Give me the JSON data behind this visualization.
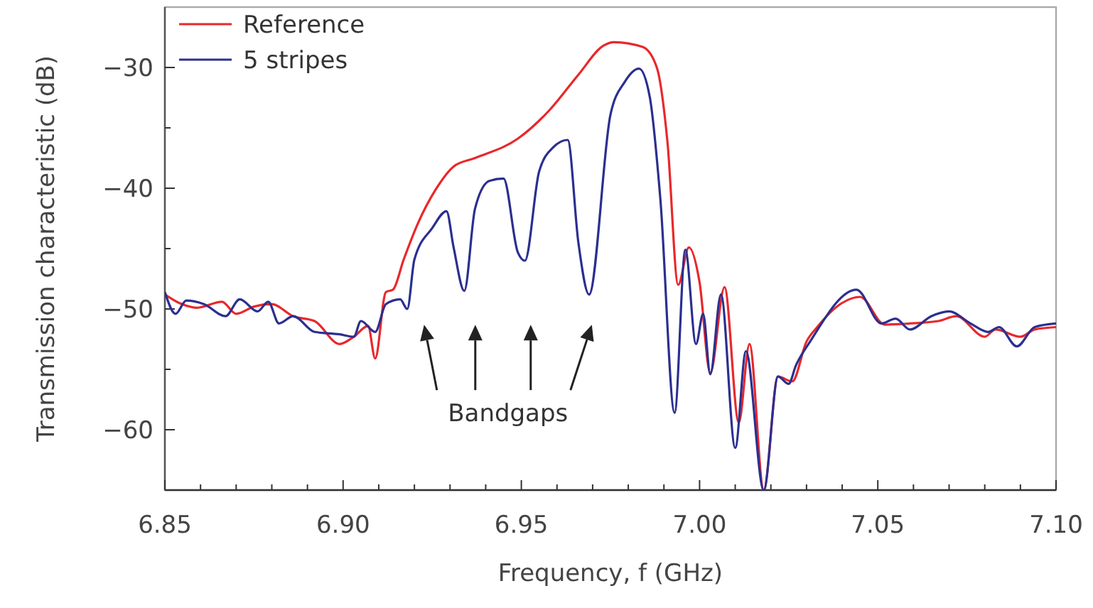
{
  "chart_data": {
    "type": "line",
    "xlabel": "Frequency, f (GHz)",
    "ylabel": "Transmission characteristic (dB)",
    "xlim": [
      6.85,
      7.1
    ],
    "ylim": [
      -65,
      -25
    ],
    "xticks": [
      6.85,
      {
        "value": 6.86,
        "label": null
      },
      {
        "value": 6.87,
        "label": null
      },
      {
        "value": 6.88,
        "label": null
      },
      {
        "value": 6.89,
        "label": null
      },
      "6.90",
      {
        "value": 6.91,
        "label": null
      },
      {
        "value": 6.92,
        "label": null
      },
      {
        "value": 6.93,
        "label": null
      },
      {
        "value": 6.94,
        "label": null
      },
      6.95,
      {
        "value": 6.96,
        "label": null
      },
      {
        "value": 6.97,
        "label": null
      },
      {
        "value": 6.98,
        "label": null
      },
      {
        "value": 6.99,
        "label": null
      },
      {
        "value": 7.0,
        "label": "7.00"
      },
      {
        "value": 7.01,
        "label": null
      },
      {
        "value": 7.02,
        "label": null
      },
      {
        "value": 7.03,
        "label": null
      },
      {
        "value": 7.04,
        "label": null
      },
      7.05,
      {
        "value": 7.06,
        "label": null
      },
      {
        "value": 7.07,
        "label": null
      },
      {
        "value": 7.08,
        "label": null
      },
      {
        "value": 7.09,
        "label": null
      },
      {
        "value": 7.1,
        "label": "7.10"
      }
    ],
    "yticks": [
      {
        "value": -65,
        "label": null
      },
      -60,
      {
        "value": -55,
        "label": null
      },
      -50,
      {
        "value": -45,
        "label": null
      },
      -40,
      {
        "value": -35,
        "label": null
      },
      -30
    ],
    "legend": "top left",
    "grid": false,
    "annotations": [
      "Bandgaps"
    ],
    "series": [
      {
        "name": "Reference",
        "color": "#e8282b",
        "x": [
          6.85,
          6.854,
          6.859,
          6.866,
          6.87,
          6.875,
          6.88,
          6.886,
          6.892,
          6.899,
          6.903,
          6.907,
          6.909,
          6.912,
          6.914,
          6.917,
          6.921,
          6.926,
          6.931,
          6.937,
          6.949,
          6.958,
          6.966,
          6.973,
          6.976,
          6.984,
          6.988,
          6.991,
          6.994,
          6.997,
          7.0,
          7.003,
          7.007,
          7.011,
          7.014,
          7.018,
          7.022,
          7.026,
          7.03,
          7.033,
          7.04,
          7.045,
          7.052,
          7.059,
          7.067,
          7.072,
          7.08,
          7.083,
          7.09,
          7.094,
          7.1
        ],
        "values": [
          -48.8,
          -49.5,
          -49.9,
          -49.4,
          -50.4,
          -49.8,
          -49.6,
          -50.6,
          -51,
          -52.9,
          -52.3,
          -51.4,
          -54.1,
          -48.6,
          -48.4,
          -45.9,
          -42.9,
          -40.1,
          -38.2,
          -37.5,
          -35.9,
          -33.5,
          -30.6,
          -28.2,
          -27.9,
          -28.3,
          -30,
          -36.2,
          -48,
          -44.9,
          -47.8,
          -55.3,
          -48.2,
          -59.4,
          -52.9,
          -65,
          -55.6,
          -56,
          -52.7,
          -51.5,
          -49.5,
          -49,
          -51.3,
          -51.2,
          -51,
          -50.6,
          -52.3,
          -51.7,
          -52.3,
          -51.7,
          -51.5
        ]
      },
      {
        "name": "5 stripes",
        "color": "#2b2f8f",
        "x": [
          6.85,
          6.853,
          6.856,
          6.861,
          6.867,
          6.871,
          6.876,
          6.879,
          6.882,
          6.886,
          6.892,
          6.899,
          6.903,
          6.905,
          6.909,
          6.912,
          6.916,
          6.918,
          6.92,
          6.925,
          6.929,
          6.931,
          6.934,
          6.937,
          6.941,
          6.945,
          6.949,
          6.951,
          6.955,
          6.959,
          6.963,
          6.966,
          6.969,
          6.975,
          6.979,
          6.983,
          6.986,
          6.989,
          6.993,
          6.996,
          6.999,
          7.001,
          7.003,
          7.006,
          7.01,
          7.013,
          7.018,
          7.022,
          7.025,
          7.027,
          7.031,
          7.044,
          7.051,
          7.055,
          7.059,
          7.065,
          7.07,
          7.076,
          7.081,
          7.084,
          7.089,
          7.094,
          7.1
        ],
        "values": [
          -48.6,
          -50.4,
          -49.3,
          -49.6,
          -50.6,
          -49.2,
          -50.2,
          -49.4,
          -51.2,
          -50.6,
          -51.9,
          -52.1,
          -52.3,
          -51,
          -51.9,
          -49.6,
          -49.2,
          -50,
          -45.9,
          -43.3,
          -41.9,
          -44.9,
          -48.5,
          -41.7,
          -39.4,
          -39.2,
          -45.3,
          -46,
          -38.6,
          -36.6,
          -36,
          -44.5,
          -48.8,
          -33.9,
          -31.2,
          -30.1,
          -32.4,
          -40.9,
          -58.6,
          -45.1,
          -52.9,
          -50.4,
          -55.4,
          -48.8,
          -61.5,
          -53.5,
          -65,
          -55.6,
          -56.2,
          -54.7,
          -52.7,
          -48.4,
          -51.2,
          -50.8,
          -51.7,
          -50.6,
          -50.2,
          -51.2,
          -51.9,
          -51.5,
          -53.1,
          -51.5,
          -51.2
        ]
      }
    ]
  }
}
